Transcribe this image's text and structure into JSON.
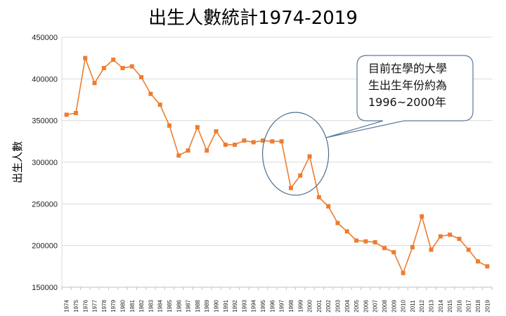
{
  "chart_data": {
    "type": "line",
    "title": "出生人數統計1974-2019",
    "xlabel": "",
    "ylabel": "出生人數",
    "ylim": [
      150000,
      450000
    ],
    "ytick_values": [
      150000,
      200000,
      250000,
      300000,
      350000,
      400000,
      450000
    ],
    "ytick_labels": [
      "150000",
      "200000",
      "250000",
      "300000",
      "350000",
      "400000",
      "450000"
    ],
    "categories": [
      "1974",
      "1975",
      "1976",
      "1977",
      "1978",
      "1979",
      "1980",
      "1981",
      "1982",
      "1983",
      "1984",
      "1985",
      "1986",
      "1987",
      "1988",
      "1989",
      "1990",
      "1991",
      "1992",
      "1993",
      "1994",
      "1995",
      "1996",
      "1997",
      "1998",
      "1999",
      "2000",
      "2001",
      "2002",
      "2003",
      "2004",
      "2005",
      "2006",
      "2007",
      "2008",
      "2009",
      "2010",
      "2011",
      "2012",
      "2013",
      "2014",
      "2015",
      "2016",
      "2017",
      "2018",
      "2019"
    ],
    "series": [
      {
        "values": [
          357000,
          359000,
          425000,
          395000,
          413000,
          423000,
          413000,
          415000,
          402000,
          382000,
          369000,
          344000,
          308000,
          314000,
          342000,
          314000,
          337000,
          321000,
          321000,
          326000,
          324000,
          326000,
          325000,
          325000,
          269000,
          284000,
          307000,
          258000,
          247000,
          227000,
          217000,
          206000,
          205000,
          204000,
          197000,
          192000,
          167000,
          198000,
          235000,
          195000,
          211000,
          213000,
          208000,
          195000,
          181000,
          175000
        ]
      }
    ],
    "grid": true,
    "line_color": "#ED7D31",
    "annotation": {
      "lines": [
        "目前在學的大學",
        "生出生年份約為",
        "1996~2000年"
      ],
      "highlight_range": [
        "1997",
        "2000"
      ]
    }
  }
}
